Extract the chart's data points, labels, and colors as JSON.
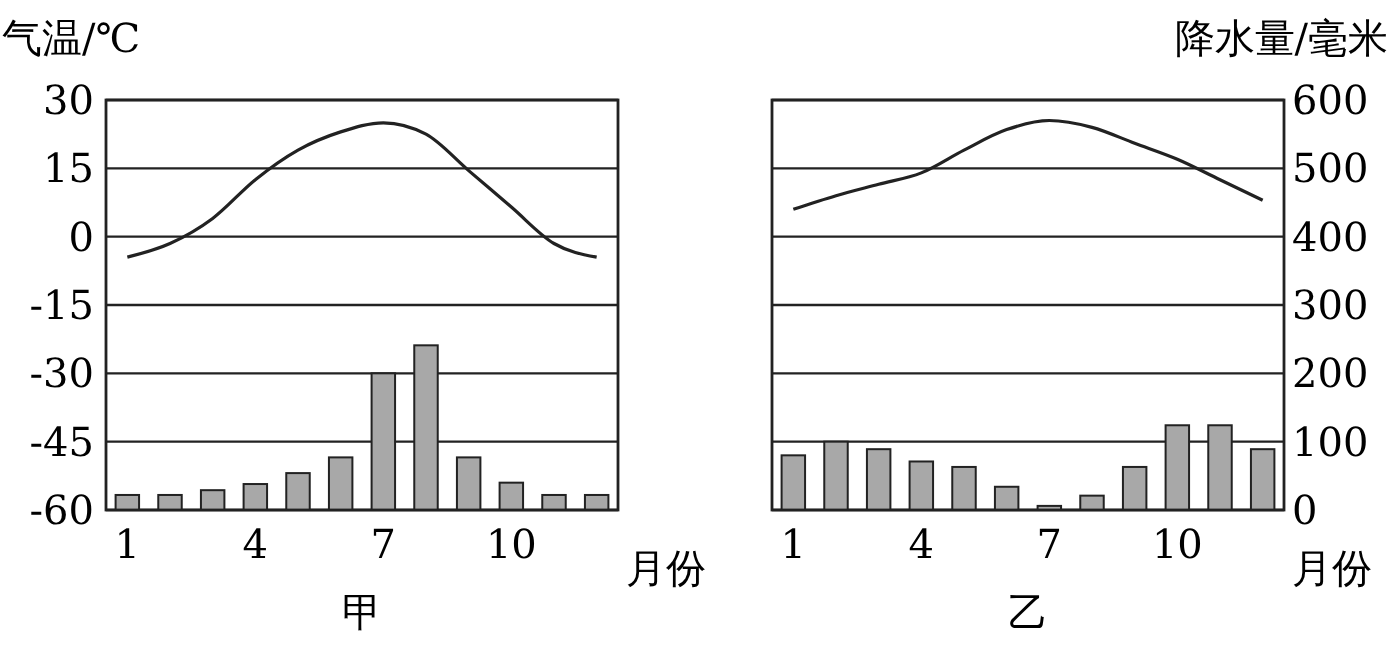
{
  "chart_data": [
    {
      "type": "bar",
      "title": "甲",
      "xlabel": "月份",
      "ylabel": "气温/℃",
      "x": [
        1,
        2,
        3,
        4,
        5,
        6,
        7,
        8,
        9,
        10,
        11,
        12
      ],
      "xlim": [
        0.5,
        12.5
      ],
      "xticks": [
        1,
        4,
        7,
        10
      ],
      "ylim": [
        -60,
        30
      ],
      "yticks": [
        -60,
        -45,
        -30,
        -15,
        0,
        15,
        30
      ],
      "y2lim": [
        0,
        600
      ],
      "tick_labels": "xy",
      "grid": "y",
      "series": [
        {
          "axis": "y2",
          "color": "#a8a8a8",
          "values": [
            22,
            22,
            29,
            38,
            54,
            77,
            200,
            241,
            77,
            40,
            22,
            22
          ]
        },
        {
          "type": "line",
          "axis": "y",
          "color": "#222222",
          "values": [
            -4.5,
            -1.5,
            4,
            12.5,
            19,
            23,
            25,
            22.5,
            14.5,
            6.5,
            -1.5,
            -4.5
          ]
        }
      ]
    },
    {
      "type": "bar",
      "title": "乙",
      "xlabel": "月份",
      "y2label": "降水量/毫米",
      "x": [
        1,
        2,
        3,
        4,
        5,
        6,
        7,
        8,
        9,
        10,
        11,
        12
      ],
      "xlim": [
        0.5,
        12.5
      ],
      "xticks": [
        1,
        4,
        7,
        10
      ],
      "ylim": [
        -60,
        30
      ],
      "y2lim": [
        0,
        600
      ],
      "y2ticks": [
        0,
        100,
        200,
        300,
        400,
        500,
        600
      ],
      "tick_labels": "xy2",
      "grid": "y2",
      "series": [
        {
          "axis": "y2",
          "color": "#a8a8a8",
          "values": [
            80,
            100,
            89,
            71,
            63,
            34,
            6,
            21,
            63,
            124,
            124,
            89
          ]
        },
        {
          "type": "line",
          "axis": "y",
          "color": "#222222",
          "values": [
            6,
            9,
            11.5,
            14,
            19,
            23.5,
            25.5,
            24,
            20.5,
            17,
            12.5,
            8
          ]
        }
      ]
    }
  ]
}
